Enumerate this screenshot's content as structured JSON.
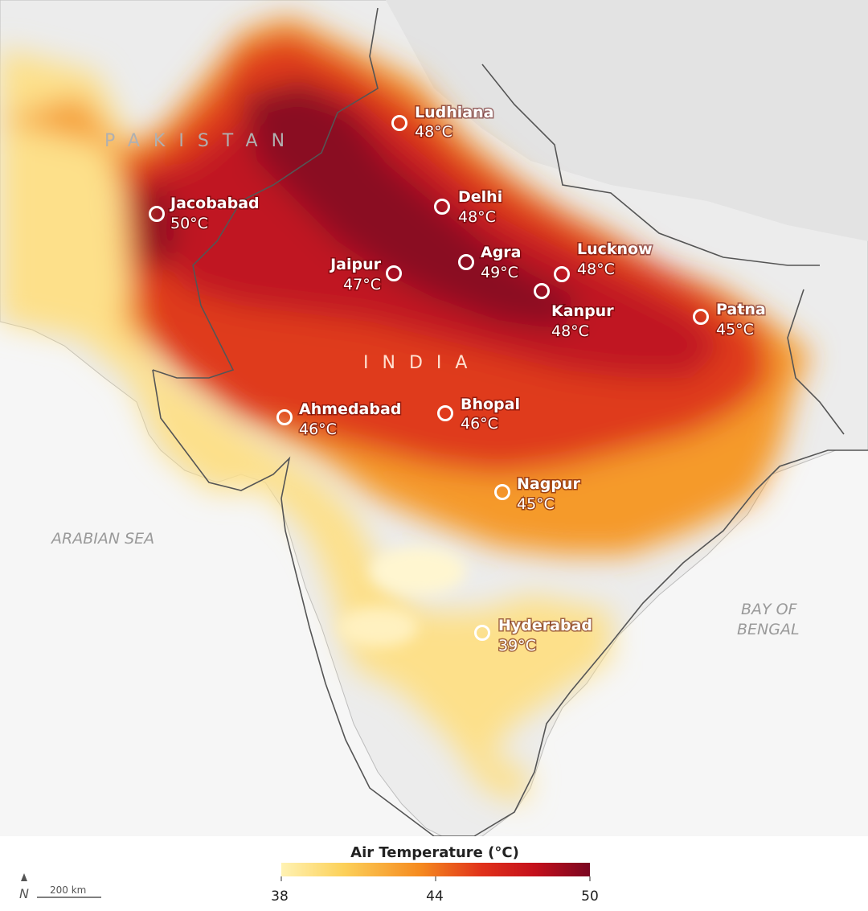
{
  "labels": {
    "pakistan": "PAKISTAN",
    "india": "INDIA",
    "arabian_sea": "ARABIAN SEA",
    "bay_line1": "BAY OF",
    "bay_line2": "BENGAL"
  },
  "legend": {
    "title": "Air Temperature (°C)",
    "min": "38",
    "mid": "44",
    "max": "50",
    "colors": [
      "#fff2b3",
      "#fcd15a",
      "#f58a1f",
      "#e0311a",
      "#c4101c",
      "#7a0620"
    ]
  },
  "scale": {
    "label": "200 km",
    "north_symbol": "N"
  },
  "cities": [
    {
      "name": "Ludhiana",
      "temp": "48°C"
    },
    {
      "name": "Delhi",
      "temp": "48°C"
    },
    {
      "name": "Jacobabad",
      "temp": "50°C"
    },
    {
      "name": "Jaipur",
      "temp": "47°C"
    },
    {
      "name": "Agra",
      "temp": "49°C"
    },
    {
      "name": "Lucknow",
      "temp": "48°C"
    },
    {
      "name": "Kanpur",
      "temp": "48°C"
    },
    {
      "name": "Patna",
      "temp": "45°C"
    },
    {
      "name": "Ahmedabad",
      "temp": "46°C"
    },
    {
      "name": "Bhopal",
      "temp": "46°C"
    },
    {
      "name": "Nagpur",
      "temp": "45°C"
    },
    {
      "name": "Hyderabad",
      "temp": "39°C"
    }
  ]
}
